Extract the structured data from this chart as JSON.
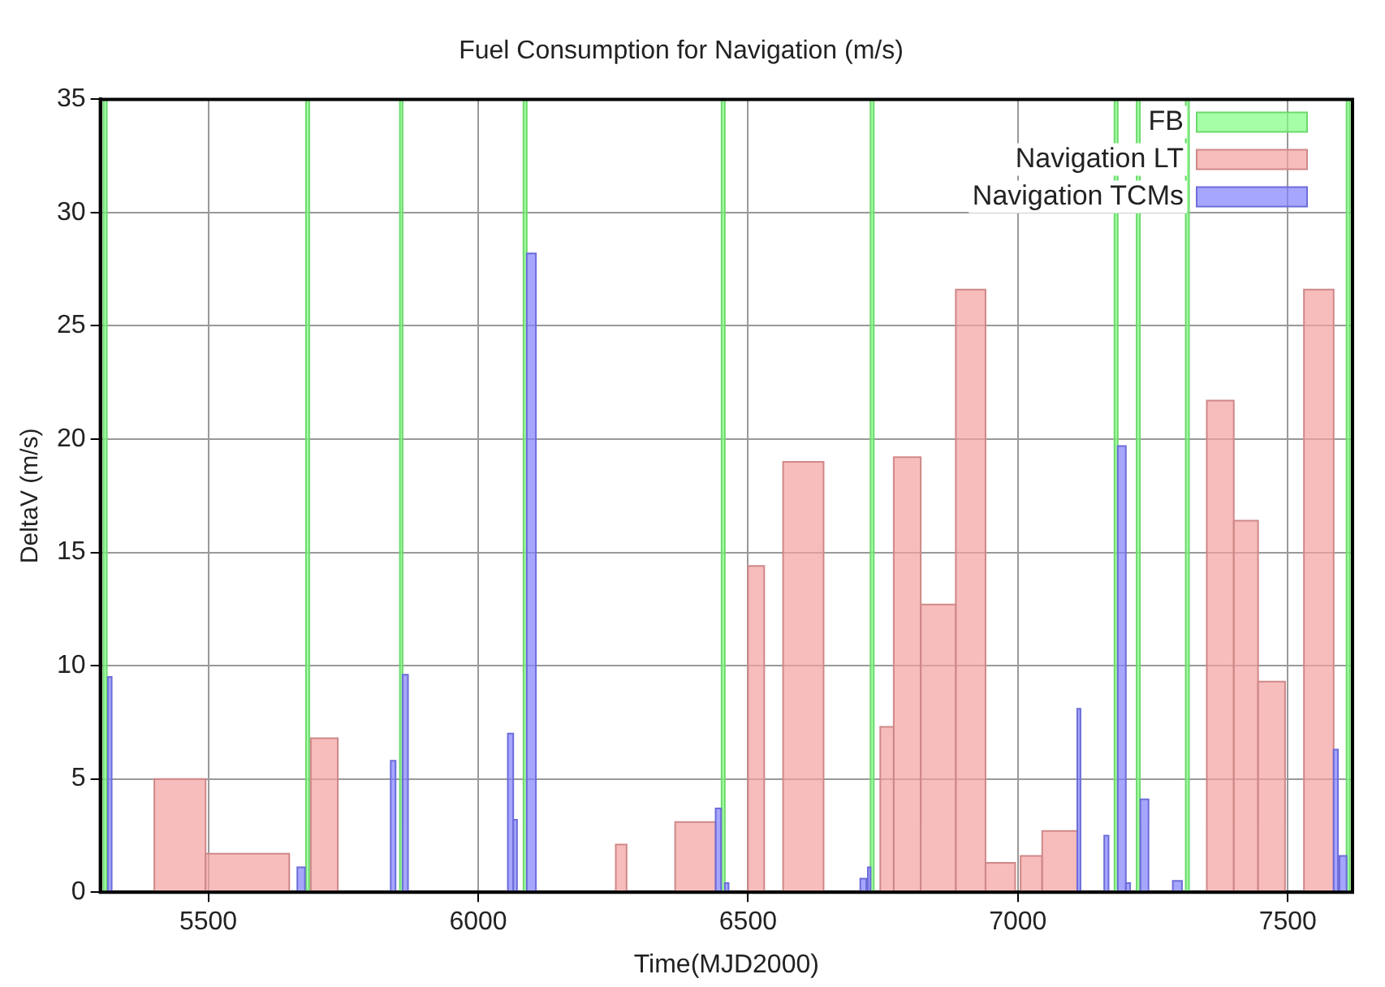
{
  "chart_data": {
    "type": "histogram",
    "title": "Fuel Consumption for Navigation (m/s)",
    "xlabel": "Time(MJD2000)",
    "ylabel": "DeltaV (m/s)",
    "xlim": [
      5300,
      7620
    ],
    "xticks": [
      5500,
      6000,
      6500,
      7000,
      7500
    ],
    "ylim": [
      0,
      35
    ],
    "yticks": [
      0,
      5,
      10,
      15,
      20,
      25,
      30,
      35
    ],
    "grid": true,
    "legend": "top right",
    "bins": [
      5306,
      5312,
      5314,
      5321,
      5400,
      5495,
      5650,
      5665,
      5679,
      5681,
      5687,
      5690,
      5740,
      5838,
      5847,
      5855,
      5860,
      5870,
      6055,
      6065,
      6072,
      6084,
      6090,
      6107,
      6255,
      6275,
      6365,
      6440,
      6450,
      6451,
      6457,
      6464,
      6500,
      6530,
      6565,
      6640,
      6708,
      6719,
      6722,
      6727,
      6733,
      6745,
      6770,
      6820,
      6885,
      6940,
      6995,
      7005,
      7045,
      7110,
      7116,
      7160,
      7168,
      7179,
      7185,
      7200,
      7208,
      7220,
      7226,
      7227,
      7242,
      7287,
      7304,
      7311,
      7317,
      7350,
      7400,
      7445,
      7495,
      7530,
      7585,
      7593,
      7596,
      7609,
      7615
    ],
    "series": [
      {
        "name": "FB",
        "color": "#80ff80",
        "values": [
          35,
          null,
          null,
          null,
          null,
          null,
          null,
          null,
          null,
          35,
          null,
          null,
          null,
          null,
          null,
          35,
          null,
          null,
          null,
          null,
          null,
          35,
          null,
          null,
          null,
          null,
          null,
          null,
          null,
          35,
          null,
          null,
          null,
          null,
          null,
          null,
          null,
          null,
          null,
          35,
          null,
          null,
          null,
          null,
          null,
          null,
          null,
          null,
          null,
          null,
          null,
          null,
          null,
          35,
          null,
          null,
          null,
          35,
          null,
          null,
          null,
          null,
          null,
          35,
          null,
          null,
          null,
          null,
          null,
          null,
          null,
          null,
          null,
          35
        ]
      },
      {
        "name": "Navigation LT",
        "color": "#f4a0a0",
        "values": [
          null,
          null,
          null,
          null,
          5,
          1.7,
          null,
          null,
          null,
          null,
          null,
          6.8,
          null,
          null,
          null,
          null,
          null,
          null,
          null,
          null,
          null,
          null,
          null,
          null,
          2.1,
          null,
          3.1,
          null,
          null,
          null,
          null,
          null,
          14.4,
          null,
          19,
          null,
          null,
          null,
          null,
          null,
          null,
          7.3,
          19.2,
          12.7,
          26.6,
          1.3,
          null,
          1.6,
          2.7,
          null,
          null,
          null,
          null,
          null,
          null,
          null,
          null,
          null,
          null,
          null,
          null,
          null,
          null,
          null,
          null,
          21.7,
          16.4,
          9.3,
          null,
          26.6,
          null,
          null,
          null,
          null
        ]
      },
      {
        "name": "Navigation TCMs",
        "color": "#8080ff",
        "values": [
          null,
          null,
          9.5,
          null,
          null,
          null,
          null,
          1.1,
          null,
          null,
          null,
          null,
          null,
          5.8,
          null,
          null,
          9.6,
          null,
          7,
          3.2,
          null,
          null,
          28.2,
          null,
          null,
          null,
          null,
          3.7,
          null,
          null,
          0.4,
          null,
          null,
          null,
          null,
          null,
          0.6,
          null,
          1.1,
          null,
          null,
          null,
          null,
          null,
          null,
          null,
          null,
          null,
          null,
          8.1,
          null,
          2.5,
          null,
          null,
          19.7,
          0.4,
          null,
          null,
          null,
          4.1,
          null,
          0.5,
          null,
          null,
          null,
          null,
          null,
          null,
          null,
          null,
          6.3,
          null,
          1.6,
          null
        ]
      }
    ]
  }
}
